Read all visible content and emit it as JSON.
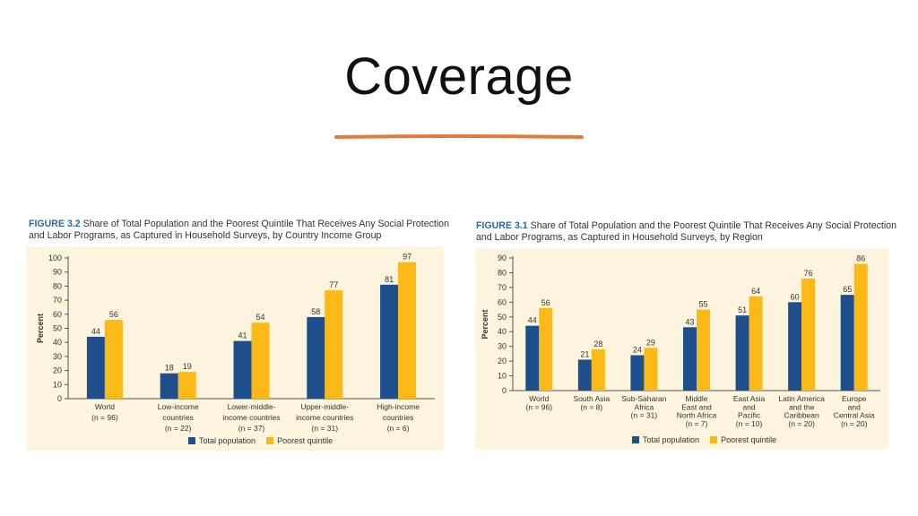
{
  "slide": {
    "title": "Coverage",
    "accent_color": "#e07b39"
  },
  "figures": [
    {
      "fig_label": "FIGURE 3.2",
      "caption": "Share of Total Population and the Poorest Quintile That Receives Any Social Protection and Labor Programs, as Captured in Household Surveys, by Country Income Group"
    },
    {
      "fig_label": "FIGURE 3.1",
      "caption": "Share of Total Population and the Poorest Quintile That Receives Any Social Protection and Labor Programs, as Captured in Household Surveys, by Region"
    }
  ],
  "chart_data": [
    {
      "type": "bar",
      "ylabel": "Percent",
      "ylim": [
        0,
        100
      ],
      "yticks": [
        0,
        10,
        20,
        30,
        40,
        50,
        60,
        70,
        80,
        90,
        100
      ],
      "grid": false,
      "legend_position": "bottom-center",
      "categories": [
        [
          "World",
          "(n = 96)"
        ],
        [
          "Low-income",
          "countries",
          "(n = 22)"
        ],
        [
          "Lower-middle-",
          "income countries",
          "(n = 37)"
        ],
        [
          "Upper-middle-",
          "income countries",
          "(n = 31)"
        ],
        [
          "High-income",
          "countries",
          "(n = 6)"
        ]
      ],
      "series": [
        {
          "name": "Total population",
          "color": "#1f4e8c",
          "values": [
            44,
            18,
            41,
            58,
            81
          ]
        },
        {
          "name": "Poorest quintile",
          "color": "#fbb917",
          "values": [
            56,
            19,
            54,
            77,
            97
          ]
        }
      ]
    },
    {
      "type": "bar",
      "ylabel": "Percent",
      "ylim": [
        0,
        90
      ],
      "yticks": [
        0,
        10,
        20,
        30,
        40,
        50,
        60,
        70,
        80,
        90
      ],
      "grid": false,
      "legend_position": "bottom-center",
      "categories": [
        [
          "World",
          "(n = 96)"
        ],
        [
          "South Asia",
          "(n = 8)"
        ],
        [
          "Sub-Saharan",
          "Africa",
          "(n = 31)"
        ],
        [
          "Middle",
          "East and",
          "North Africa",
          "(n = 7)"
        ],
        [
          "East Asia",
          "and",
          "Pacific",
          "(n = 10)"
        ],
        [
          "Latin America",
          "and the",
          "Caribbean",
          "(n = 20)"
        ],
        [
          "Europe",
          "and",
          "Central Asia",
          "(n = 20)"
        ]
      ],
      "series": [
        {
          "name": "Total population",
          "color": "#1f4e8c",
          "values": [
            44,
            21,
            24,
            43,
            51,
            60,
            65
          ]
        },
        {
          "name": "Poorest quintile",
          "color": "#fbb917",
          "values": [
            56,
            28,
            29,
            55,
            64,
            76,
            86
          ]
        }
      ]
    }
  ]
}
